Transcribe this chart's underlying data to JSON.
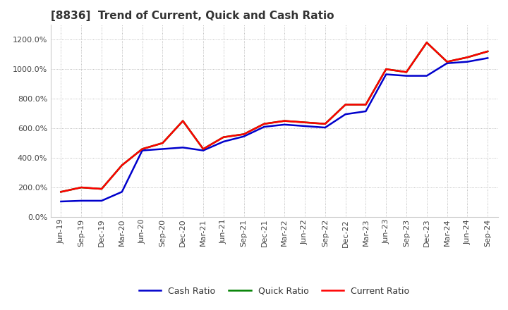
{
  "title": "[8836]  Trend of Current, Quick and Cash Ratio",
  "x_labels": [
    "Jun-19",
    "Sep-19",
    "Dec-19",
    "Mar-20",
    "Jun-20",
    "Sep-20",
    "Dec-20",
    "Mar-21",
    "Jun-21",
    "Sep-21",
    "Dec-21",
    "Mar-22",
    "Jun-22",
    "Sep-22",
    "Dec-22",
    "Mar-23",
    "Jun-23",
    "Sep-23",
    "Dec-23",
    "Mar-24",
    "Jun-24",
    "Sep-24"
  ],
  "current_ratio": [
    170,
    200,
    190,
    350,
    460,
    500,
    650,
    460,
    540,
    560,
    630,
    650,
    640,
    630,
    760,
    760,
    1000,
    980,
    1180,
    1050,
    1080,
    1120
  ],
  "quick_ratio": [
    170,
    200,
    190,
    350,
    460,
    500,
    650,
    460,
    540,
    560,
    630,
    650,
    640,
    630,
    760,
    760,
    1000,
    980,
    1180,
    1050,
    1080,
    1120
  ],
  "cash_ratio": [
    105,
    110,
    110,
    170,
    450,
    460,
    470,
    450,
    510,
    545,
    610,
    625,
    615,
    605,
    695,
    715,
    965,
    955,
    955,
    1040,
    1050,
    1075
  ],
  "current_color": "#ff0000",
  "quick_color": "#008000",
  "cash_color": "#0000cc",
  "ylim": [
    0,
    1300
  ],
  "yticks": [
    0,
    200,
    400,
    600,
    800,
    1000,
    1200
  ],
  "background_color": "#ffffff",
  "grid_color": "#aaaaaa",
  "title_fontsize": 11,
  "tick_fontsize": 8
}
